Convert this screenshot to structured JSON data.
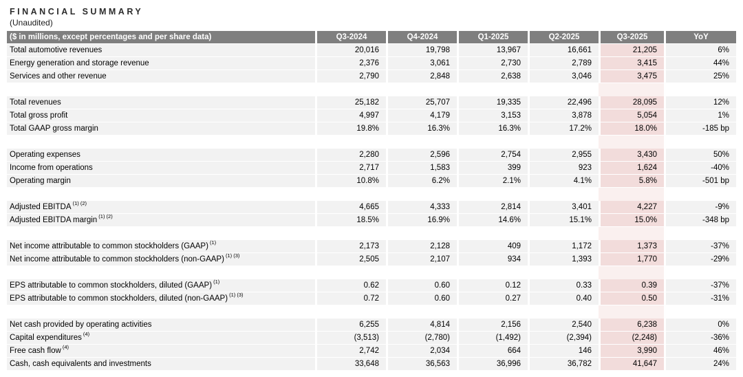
{
  "page": {
    "title": "FINANCIAL SUMMARY",
    "subtitle": "(Unaudited)"
  },
  "colors": {
    "header_bg": "#7f7f7f",
    "header_text": "#ffffff",
    "row_bg": "#f2f2f2",
    "highlight_bg": "#f2dcdb",
    "highlight_gap_bg": "#faf0ef"
  },
  "table": {
    "header": {
      "label": "($ in millions, except percentages and per share data)",
      "columns": [
        "Q3-2024",
        "Q4-2024",
        "Q1-2025",
        "Q2-2025",
        "Q3-2025",
        "YoY"
      ],
      "highlight_column": "Q3-2025"
    },
    "sections": [
      {
        "rows": [
          {
            "label": "Total automotive revenues",
            "sup": "",
            "values": [
              "20,016",
              "19,798",
              "13,967",
              "16,661",
              "21,205",
              "6%"
            ]
          },
          {
            "label": "Energy generation and storage revenue",
            "sup": "",
            "values": [
              "2,376",
              "3,061",
              "2,730",
              "2,789",
              "3,415",
              "44%"
            ]
          },
          {
            "label": "Services and other revenue",
            "sup": "",
            "values": [
              "2,790",
              "2,848",
              "2,638",
              "3,046",
              "3,475",
              "25%"
            ]
          }
        ]
      },
      {
        "rows": [
          {
            "label": "Total revenues",
            "sup": "",
            "values": [
              "25,182",
              "25,707",
              "19,335",
              "22,496",
              "28,095",
              "12%"
            ]
          },
          {
            "label": "Total gross profit",
            "sup": "",
            "values": [
              "4,997",
              "4,179",
              "3,153",
              "3,878",
              "5,054",
              "1%"
            ]
          },
          {
            "label": "Total GAAP gross margin",
            "sup": "",
            "values": [
              "19.8%",
              "16.3%",
              "16.3%",
              "17.2%",
              "18.0%",
              "-185 bp"
            ]
          }
        ]
      },
      {
        "rows": [
          {
            "label": "Operating expenses",
            "sup": "",
            "values": [
              "2,280",
              "2,596",
              "2,754",
              "2,955",
              "3,430",
              "50%"
            ]
          },
          {
            "label": "Income from operations",
            "sup": "",
            "values": [
              "2,717",
              "1,583",
              "399",
              "923",
              "1,624",
              "-40%"
            ]
          },
          {
            "label": "Operating margin",
            "sup": "",
            "values": [
              "10.8%",
              "6.2%",
              "2.1%",
              "4.1%",
              "5.8%",
              "-501 bp"
            ]
          }
        ]
      },
      {
        "rows": [
          {
            "label": "Adjusted EBITDA",
            "sup": "(1) (2)",
            "values": [
              "4,665",
              "4,333",
              "2,814",
              "3,401",
              "4,227",
              "-9%"
            ]
          },
          {
            "label": "Adjusted EBITDA margin",
            "sup": "(1) (2)",
            "values": [
              "18.5%",
              "16.9%",
              "14.6%",
              "15.1%",
              "15.0%",
              "-348 bp"
            ]
          }
        ]
      },
      {
        "rows": [
          {
            "label": "Net income attributable to common stockholders (GAAP)",
            "sup": "(1)",
            "values": [
              "2,173",
              "2,128",
              "409",
              "1,172",
              "1,373",
              "-37%"
            ]
          },
          {
            "label": "Net income attributable to common stockholders (non-GAAP)",
            "sup": "(1) (3)",
            "values": [
              "2,505",
              "2,107",
              "934",
              "1,393",
              "1,770",
              "-29%"
            ]
          }
        ]
      },
      {
        "rows": [
          {
            "label": "EPS attributable to common stockholders, diluted (GAAP)",
            "sup": "(1)",
            "values": [
              "0.62",
              "0.60",
              "0.12",
              "0.33",
              "0.39",
              "-37%"
            ]
          },
          {
            "label": "EPS attributable to common stockholders, diluted (non-GAAP)",
            "sup": "(1) (3)",
            "values": [
              "0.72",
              "0.60",
              "0.27",
              "0.40",
              "0.50",
              "-31%"
            ]
          }
        ]
      },
      {
        "rows": [
          {
            "label": "Net cash provided by operating activities",
            "sup": "",
            "values": [
              "6,255",
              "4,814",
              "2,156",
              "2,540",
              "6,238",
              "0%"
            ]
          },
          {
            "label": "Capital expenditures",
            "sup": "(4)",
            "values": [
              "(3,513)",
              "(2,780)",
              "(1,492)",
              "(2,394)",
              "(2,248)",
              "-36%"
            ]
          },
          {
            "label": "Free cash flow",
            "sup": "(4)",
            "values": [
              "2,742",
              "2,034",
              "664",
              "146",
              "3,990",
              "46%"
            ]
          },
          {
            "label": "Cash, cash equivalents and investments",
            "sup": "",
            "values": [
              "33,648",
              "36,563",
              "36,996",
              "36,782",
              "41,647",
              "24%"
            ]
          }
        ]
      }
    ]
  }
}
